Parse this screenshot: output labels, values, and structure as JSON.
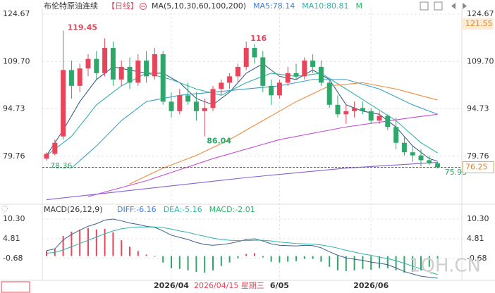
{
  "chart_data": {
    "type": "candlestick",
    "title": "布伦特原油连续",
    "period": "【日线】",
    "ma_legend": [
      "MA(5,10,30,60,100,200)",
      "MA5:78.14",
      "MA10:80.81",
      "M"
    ],
    "ma_legend_colors": [
      "#333333",
      "#3b7dd8",
      "#2fb3a8",
      "#2fb36b"
    ],
    "categories": [
      null,
      null,
      null,
      null,
      null,
      null,
      null,
      null,
      null,
      null,
      null,
      null,
      null,
      null,
      null,
      "2026/04",
      null,
      null,
      null,
      null,
      null,
      null,
      null,
      null,
      null,
      null,
      null,
      null,
      "6/05",
      null,
      null,
      null,
      null,
      null,
      null,
      null,
      null,
      null,
      null,
      "2026/06",
      null,
      null,
      null,
      null,
      null,
      null,
      null,
      null
    ],
    "open": [
      79,
      80.5,
      86,
      107,
      102,
      107.5,
      110.5,
      106,
      114,
      104,
      108,
      103,
      110,
      105,
      112,
      97,
      94,
      99,
      97,
      94,
      95,
      101,
      103,
      105,
      108,
      114,
      111,
      102,
      99,
      103,
      106,
      105,
      110,
      108,
      103,
      96,
      93,
      94,
      95,
      94,
      91,
      92.5,
      89,
      84,
      81,
      80,
      78.5,
      77.5
    ],
    "high": [
      81,
      85,
      119.45,
      110,
      109,
      112,
      113,
      117,
      116,
      110,
      111,
      112,
      113,
      114,
      113,
      100,
      101,
      103,
      100,
      98,
      102,
      104,
      106,
      109,
      116,
      115.21,
      113,
      104,
      104,
      108,
      109,
      111,
      112,
      110,
      104,
      99,
      96,
      97,
      97,
      95,
      94,
      93,
      92,
      86,
      83,
      82,
      80,
      78
    ],
    "low": [
      78.36,
      80,
      85,
      98,
      100,
      105,
      104,
      105,
      102,
      102,
      101,
      102,
      103,
      104,
      96,
      92,
      93,
      96,
      91,
      86.04,
      94,
      99,
      101,
      103,
      107,
      109,
      100,
      96,
      98,
      102,
      104,
      104,
      106,
      102,
      95,
      92,
      90,
      92,
      93,
      90,
      90,
      88,
      82,
      80,
      78,
      76.5,
      77,
      75.93
    ],
    "close": [
      80.5,
      84,
      107,
      102,
      107.5,
      110.5,
      106,
      114,
      104,
      108,
      103,
      110,
      105,
      112,
      97,
      94,
      99,
      97,
      94,
      95,
      101,
      103,
      105,
      108,
      114,
      111,
      102,
      99,
      103,
      106,
      105,
      110,
      108,
      103,
      96,
      93,
      94,
      95,
      94,
      91,
      92.5,
      89,
      84,
      81,
      80,
      78.5,
      77.5,
      76.25
    ],
    "up_color": "#e8455a",
    "down_color": "#2ea86a",
    "ylim": [
      65.68,
      126.46
    ],
    "yticks": [
      124.67,
      {
        "value": 109.7,
        "label": "109.70"
      },
      94.73,
      79.76
    ],
    "ref_price": 121.55,
    "ma_lines": [
      {
        "color": "#3b5f8a",
        "x": [
          0,
          2,
          4,
          6,
          8,
          10,
          12,
          14,
          16,
          18,
          20,
          22,
          24,
          26,
          28,
          30,
          32,
          34,
          36,
          38,
          40,
          42,
          44,
          46,
          47
        ],
        "values": [
          80,
          88,
          97,
          104,
          108,
          107,
          106,
          106,
          103,
          98,
          96,
          100,
          106,
          109,
          105,
          104,
          107,
          104,
          96,
          94,
          93,
          89,
          83,
          79,
          78.14
        ]
      },
      {
        "color": "#2fb3a8",
        "x": [
          0,
          3,
          6,
          9,
          12,
          15,
          18,
          21,
          24,
          27,
          30,
          33,
          36,
          39,
          42,
          45,
          47
        ],
        "values": [
          80,
          86,
          96,
          102,
          106,
          104,
          101,
          99,
          103,
          106,
          105,
          106,
          101,
          96,
          91,
          84,
          80.81
        ]
      },
      {
        "color": "#3a9fc8",
        "x": [
          3,
          6,
          9,
          12,
          16,
          20,
          24,
          28,
          32,
          36,
          40,
          44,
          47
        ],
        "values": [
          76,
          83,
          91,
          97,
          99,
          100,
          101,
          102,
          104,
          104,
          101,
          96,
          93
        ]
      },
      {
        "color": "#f08a3c",
        "x": [
          10,
          14,
          18,
          22,
          26,
          30,
          34,
          38,
          42,
          47
        ],
        "values": [
          71,
          76,
          80,
          85,
          91,
          97,
          102,
          103,
          101,
          97.5
        ]
      },
      {
        "color": "#c64fd6",
        "x": [
          5,
          12,
          20,
          28,
          36,
          44,
          47
        ],
        "values": [
          67,
          72,
          79,
          85,
          89,
          92,
          93
        ]
      },
      {
        "color": "#8a5fd0",
        "x": [
          0,
          12,
          24,
          36,
          47
        ],
        "values": [
          66,
          69.5,
          73,
          76,
          77.8
        ]
      }
    ],
    "macd": {
      "title": "MACD(26,12,9)",
      "legend": [
        "DIFF:-6.16",
        "DEA:-5.16",
        "MACD:-2.01"
      ],
      "legend_colors": [
        "#3b7dd8",
        "#2fb3a8",
        "#2fb36b"
      ],
      "ylim": [
        -6.76,
        11.48
      ],
      "yticks": [
        {
          "value": 10.3,
          "label": "10.30"
        },
        4.81,
        -0.68
      ],
      "diff_color": "#3b5f8a",
      "dea_color": "#2fb3a8",
      "diff": [
        1.5,
        2.0,
        4.5,
        6.0,
        7.2,
        8.3,
        9.0,
        10.0,
        10.3,
        9.8,
        9.2,
        8.8,
        8.3,
        8.0,
        7.0,
        5.8,
        5.2,
        4.6,
        3.8,
        3.2,
        3.0,
        3.2,
        3.5,
        4.0,
        4.6,
        4.8,
        4.2,
        3.4,
        3.0,
        2.9,
        2.8,
        3.0,
        2.9,
        2.3,
        1.2,
        0.2,
        -0.5,
        -0.9,
        -1.2,
        -1.7,
        -2.0,
        -2.4,
        -3.3,
        -4.3,
        -5.0,
        -5.6,
        -5.9,
        -6.16
      ],
      "dea": [
        0.8,
        1.0,
        1.7,
        2.6,
        3.5,
        4.4,
        5.3,
        6.2,
        7.0,
        7.6,
        7.9,
        8.1,
        8.1,
        8.1,
        7.9,
        7.5,
        7.0,
        6.6,
        6.0,
        5.5,
        5.0,
        4.6,
        4.4,
        4.3,
        4.3,
        4.4,
        4.4,
        4.2,
        3.9,
        3.7,
        3.5,
        3.4,
        3.3,
        3.1,
        2.7,
        2.2,
        1.6,
        1.1,
        0.6,
        0.2,
        -0.3,
        -0.7,
        -1.3,
        -2.0,
        -2.8,
        -3.6,
        -4.4,
        -5.16
      ],
      "hist": [
        1.4,
        2.0,
        5.6,
        6.8,
        7.4,
        7.8,
        7.4,
        7.6,
        6.6,
        4.4,
        2.6,
        1.4,
        0.4,
        -0.2,
        -1.8,
        -3.4,
        -3.6,
        -4.0,
        -4.4,
        -4.6,
        -4.0,
        -2.8,
        -1.8,
        -0.6,
        0.6,
        0.8,
        -0.4,
        -1.6,
        -1.8,
        -1.6,
        -1.4,
        -0.8,
        -0.8,
        -1.6,
        -3.0,
        -4.0,
        -4.2,
        -4.0,
        -3.6,
        -3.8,
        -3.4,
        -3.4,
        -4.0,
        -4.6,
        -4.4,
        -4.0,
        -3.0,
        -2.01
      ]
    },
    "crosshair_label": "2026/04/15 星期三",
    "watermark": "1QH.CN"
  }
}
